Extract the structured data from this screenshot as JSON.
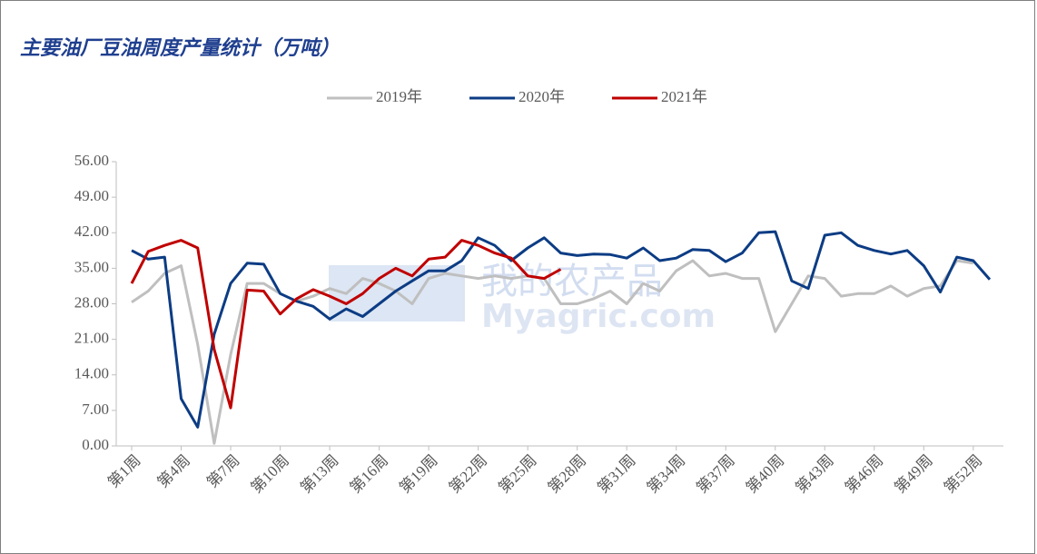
{
  "chart_data": {
    "type": "line",
    "title": "主要油厂豆油周度产量统计（万吨）",
    "watermark": [
      "我的农产品",
      "Myagric.com"
    ],
    "categories": [
      "第1周",
      null,
      null,
      "第4周",
      null,
      null,
      "第7周",
      null,
      null,
      "第10周",
      null,
      null,
      "第13周",
      null,
      null,
      "第16周",
      null,
      null,
      "第19周",
      null,
      null,
      "第22周",
      null,
      null,
      "第25周",
      null,
      null,
      "第28周",
      null,
      null,
      "第31周",
      null,
      null,
      "第34周",
      null,
      null,
      "第37周",
      null,
      null,
      "第40周",
      null,
      null,
      "第43周",
      null,
      null,
      "第46周",
      null,
      null,
      "第49周",
      null,
      null,
      "第52周",
      null
    ],
    "series": [
      {
        "name": "2019年",
        "color": "#bfbfbf",
        "values": [
          28.3,
          30.5,
          34,
          35.5,
          20,
          0.5,
          18,
          32,
          32,
          30,
          28.5,
          29.5,
          31,
          30,
          33,
          32,
          30.5,
          28,
          33,
          34,
          33.5,
          33,
          33.5,
          33,
          33.5,
          33,
          28,
          28,
          29,
          30.5,
          28,
          32,
          30.5,
          34.5,
          36.5,
          33.5,
          34,
          33,
          33,
          22.5,
          28,
          33.5,
          33,
          29.5,
          30,
          30,
          31.5,
          29.5,
          31,
          31.5,
          36.5,
          36,
          null
        ]
      },
      {
        "name": "2020年",
        "color": "#0c3c84",
        "values": [
          38.5,
          36.8,
          37.2,
          9.3,
          3.7,
          22,
          32,
          36,
          35.8,
          30,
          28.5,
          27.5,
          25,
          27,
          25.5,
          28,
          30.5,
          32.5,
          34.5,
          34.5,
          36.5,
          41,
          39.5,
          36.5,
          39,
          41,
          38,
          37.5,
          37.8,
          37.7,
          37,
          39,
          36.5,
          37,
          38.7,
          38.5,
          36.3,
          38,
          42,
          42.2,
          32.5,
          31,
          41.5,
          42,
          39.5,
          38.5,
          37.8,
          38.5,
          35.5,
          30.3,
          37.2,
          36.5,
          32.8
        ]
      },
      {
        "name": "2021年",
        "color": "#c00000",
        "values": [
          32,
          38.3,
          39.5,
          40.5,
          39,
          19,
          7.5,
          30.7,
          30.5,
          26,
          29,
          30.8,
          29.5,
          28,
          30,
          33,
          35,
          33.5,
          36.8,
          37.2,
          40.5,
          39.5,
          38,
          37,
          33.5,
          33,
          34.8,
          null,
          null,
          null,
          null,
          null,
          null,
          null,
          null,
          null,
          null,
          null,
          null,
          null,
          null,
          null,
          null,
          null,
          null,
          null,
          null,
          null,
          null,
          null,
          null,
          null,
          null
        ]
      }
    ],
    "ylim": [
      0,
      56
    ],
    "yticks": [
      {
        "value": 0,
        "label": "0.00"
      },
      {
        "value": 7,
        "label": "7.00"
      },
      {
        "value": 14,
        "label": "14.00"
      },
      {
        "value": 21,
        "label": "21.00"
      },
      {
        "value": 28,
        "label": "28.00"
      },
      {
        "value": 35,
        "label": "35.00"
      },
      {
        "value": 42,
        "label": "42.00"
      },
      {
        "value": 49,
        "label": "49.00"
      },
      {
        "value": 56,
        "label": "56.00"
      }
    ],
    "grid": false,
    "legend": "top"
  }
}
